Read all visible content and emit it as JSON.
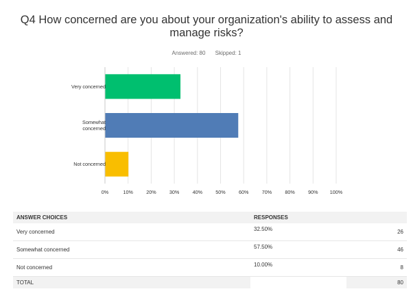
{
  "question": {
    "title": "Q4 How concerned are you about your organization's ability to assess and manage risks?",
    "answered_label": "Answered: 80",
    "skipped_label": "Skipped: 1"
  },
  "chart_data": {
    "type": "bar",
    "orientation": "horizontal",
    "categories": [
      "Very concerned",
      "Somewhat concerned",
      "Not concerned"
    ],
    "category_label_lines": [
      [
        "Very concerned"
      ],
      [
        "Somewhat",
        "concerned"
      ],
      [
        "Not concerned"
      ]
    ],
    "values": [
      32.5,
      57.5,
      10.0
    ],
    "colors": [
      "#00bf6f",
      "#507cb6",
      "#f9be00"
    ],
    "xlim": [
      0,
      100
    ],
    "x_ticks": [
      "0%",
      "10%",
      "20%",
      "30%",
      "40%",
      "50%",
      "60%",
      "70%",
      "80%",
      "90%",
      "100%"
    ],
    "grid": true,
    "title": "",
    "xlabel": "",
    "ylabel": ""
  },
  "table": {
    "headers": [
      "ANSWER CHOICES",
      "RESPONSES",
      ""
    ],
    "rows": [
      {
        "choice": "Very concerned",
        "percent": "32.50%",
        "count": "26"
      },
      {
        "choice": "Somewhat concerned",
        "percent": "57.50%",
        "count": "46"
      },
      {
        "choice": "Not concerned",
        "percent": "10.00%",
        "count": "8"
      }
    ],
    "total_label": "TOTAL",
    "total_count": "80"
  }
}
